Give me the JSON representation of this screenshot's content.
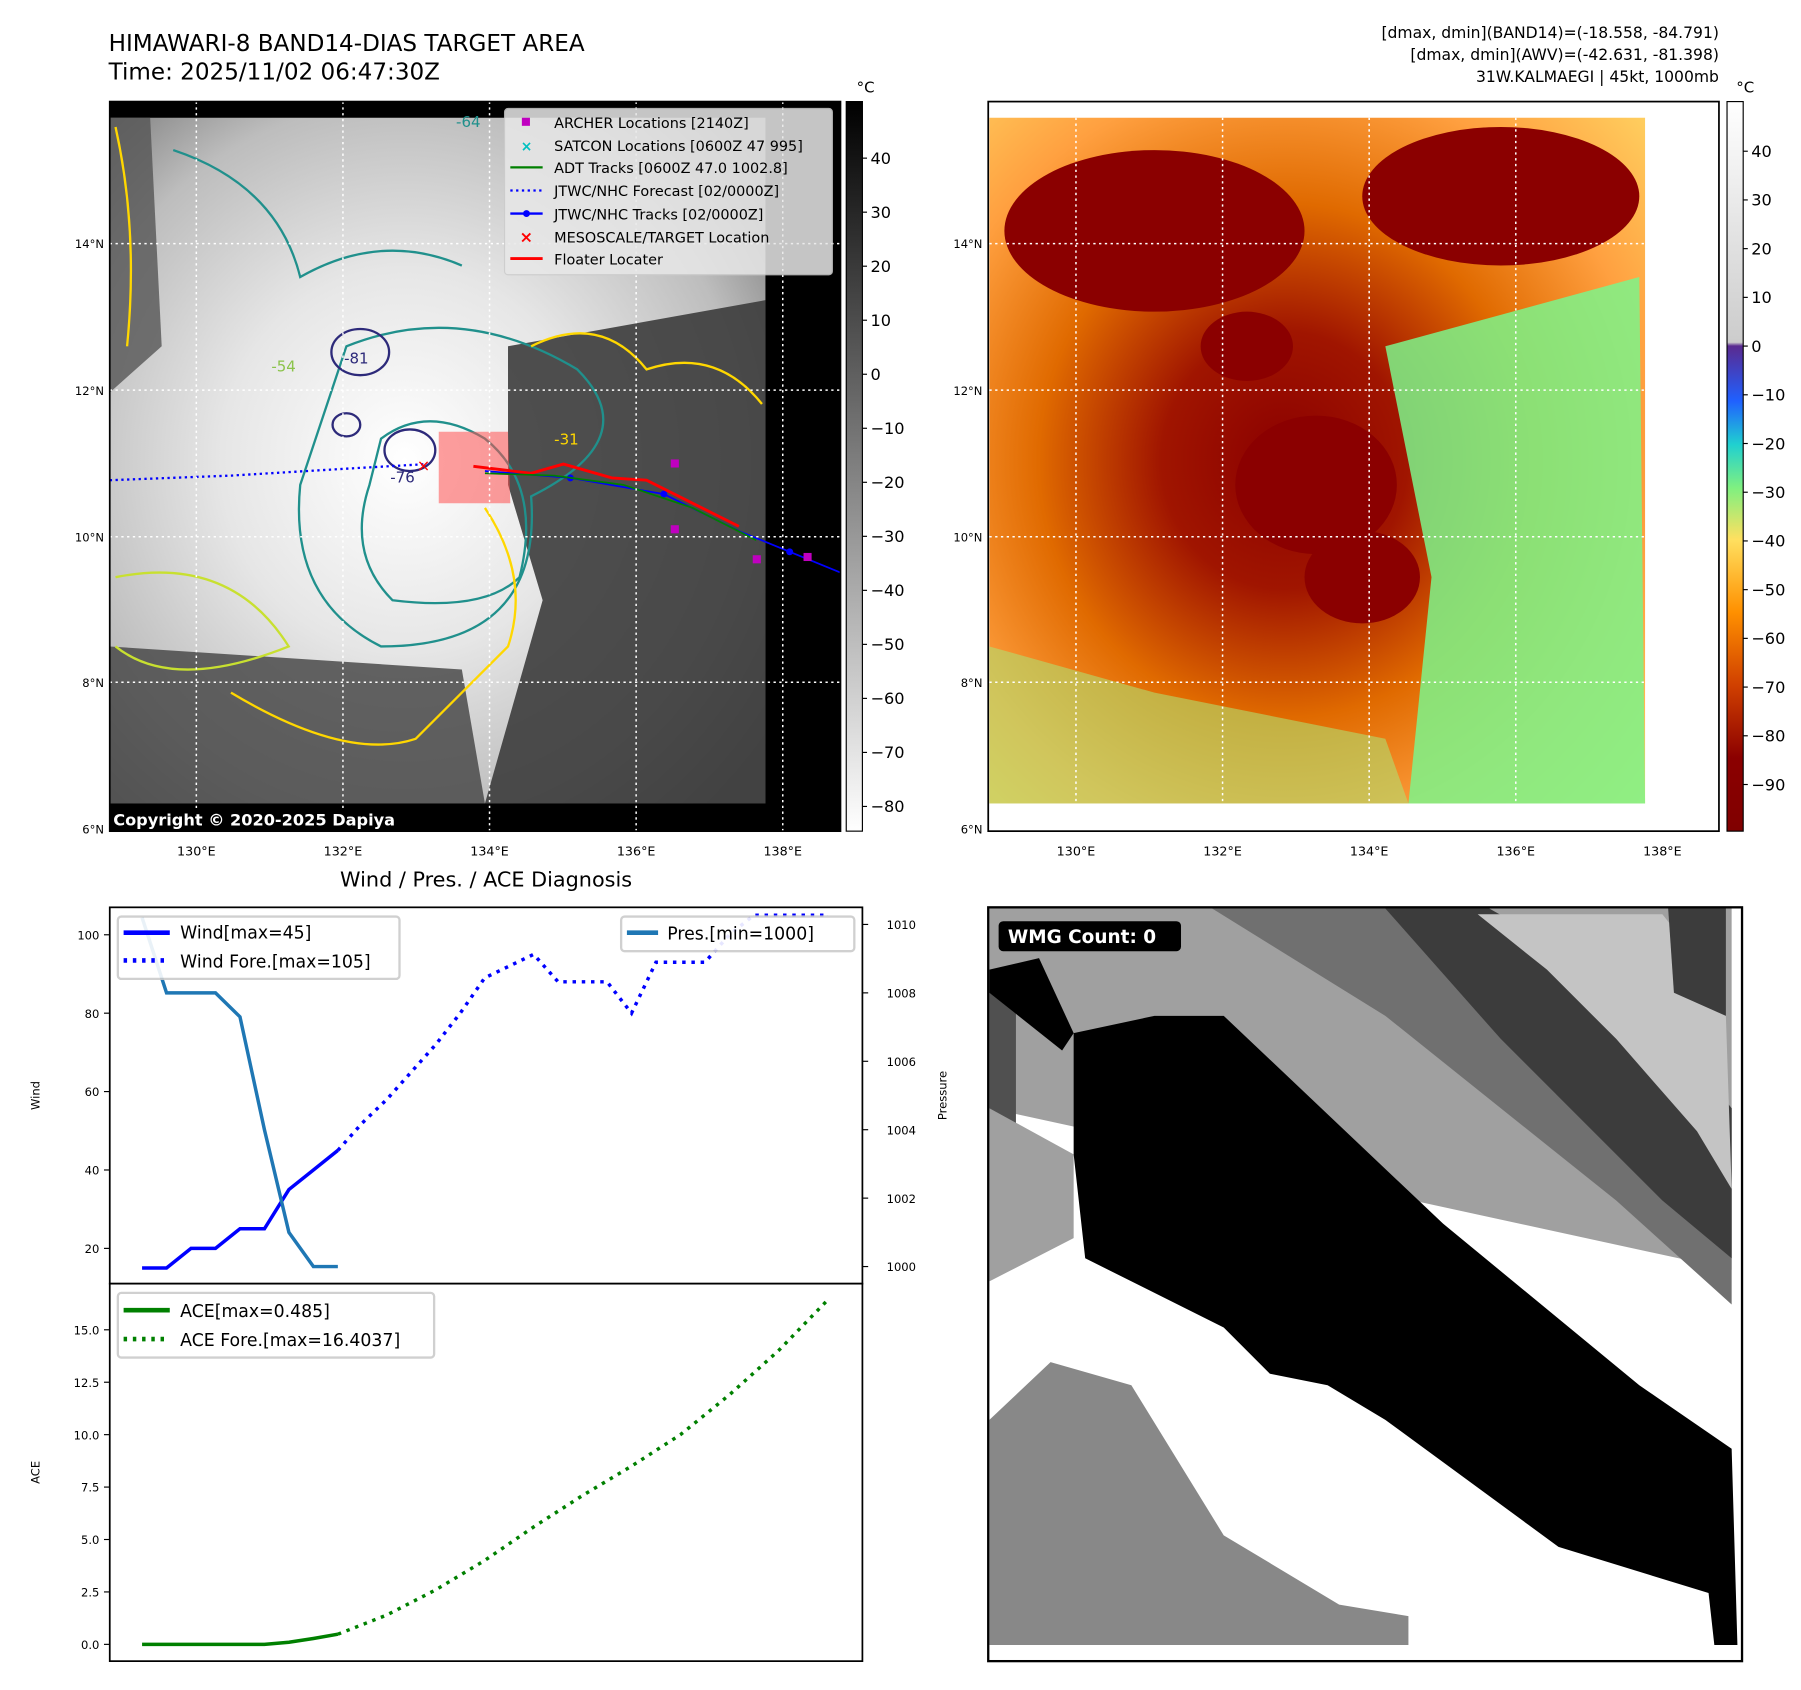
{
  "header": {
    "title": "HIMAWARI-8 BAND14-DIAS TARGET AREA",
    "time": "Time: 2025/11/02 06:47:30Z",
    "stats_band14": "[dmax, dmin](BAND14)=(-18.558, -84.791)",
    "stats_awv": "[dmax, dmin](AWV)=(-42.631, -81.398)",
    "storm": "31W.KALMAEGI | 45kt, 1000mb"
  },
  "map": {
    "lat_labels": [
      "14°N",
      "12°N",
      "10°N",
      "8°N",
      "6°N"
    ],
    "lon_labels": [
      "130°E",
      "132°E",
      "134°E",
      "136°E",
      "138°E"
    ],
    "copyright": "Copyright © 2020-2025 Dapiya",
    "legend": [
      {
        "label": "ARCHER Locations [2140Z]",
        "color": "#c000c0"
      },
      {
        "label": "SATCON Locations [0600Z 47 995]",
        "color": "#00c0c0"
      },
      {
        "label": "ADT Tracks [0600Z 47.0 1002.8]",
        "color": "#008000"
      },
      {
        "label": "JTWC/NHC Forecast [02/0000Z]",
        "color": "#0000ff"
      },
      {
        "label": "JTWC/NHC Tracks [02/0000Z]",
        "color": "#0000ff"
      },
      {
        "label": "MESOSCALE/TARGET Location",
        "color": "#ff0000"
      },
      {
        "label": "Floater Locater",
        "color": "#ff0000"
      }
    ],
    "contour_labels": [
      "-64",
      "-31",
      "-76",
      "-81",
      "-54"
    ],
    "cbar_unit": "°C",
    "cbar_left_ticks": [
      "40",
      "30",
      "20",
      "10",
      "0",
      "−10",
      "−20",
      "−30",
      "−40",
      "−50",
      "−60",
      "−70",
      "−80"
    ],
    "cbar_right_ticks": [
      "40",
      "30",
      "20",
      "10",
      "0",
      "−10",
      "−20",
      "−30",
      "−40",
      "−50",
      "−60",
      "−70",
      "−80",
      "−90"
    ]
  },
  "wmg": {
    "badge": "WMG Count: 0"
  },
  "chart_data": [
    {
      "type": "line",
      "title": "Wind / Pres. / ACE Diagnosis",
      "ylabel": "Wind",
      "ylabel_right": "Pressure",
      "ylim": [
        11,
        107
      ],
      "ylim_right": [
        999.5,
        1010.5
      ],
      "yticks": [
        "20",
        "40",
        "60",
        "80",
        "100"
      ],
      "yticks_right": [
        "1000",
        "1002",
        "1004",
        "1006",
        "1008",
        "1010"
      ],
      "series": [
        {
          "name": "Wind[max=45]",
          "color": "#0000ff",
          "style": "solid",
          "x": [
            0,
            1,
            2,
            3,
            4,
            5,
            6,
            7,
            8
          ],
          "values": [
            15,
            15,
            20,
            20,
            25,
            25,
            35,
            40,
            45
          ]
        },
        {
          "name": "Wind Fore.[max=105]",
          "color": "#0000ff",
          "style": "dotted",
          "x": [
            8,
            9,
            10,
            11,
            12,
            13,
            14,
            15,
            16,
            17,
            18,
            19,
            20,
            21,
            22,
            23,
            24,
            25,
            26,
            27,
            28
          ],
          "values": [
            45,
            52,
            58,
            65,
            72,
            80,
            89,
            92,
            95,
            88,
            88,
            88,
            80,
            93,
            93,
            93,
            100,
            105,
            105,
            105,
            105
          ]
        },
        {
          "name": "Pres.[min=1000]",
          "color": "#1f77b4",
          "style": "solid",
          "axis": "right",
          "x": [
            0,
            1,
            2,
            3,
            4,
            5,
            6,
            7,
            8
          ],
          "values": [
            1010.2,
            1008,
            1008,
            1008,
            1007.3,
            1004,
            1001,
            1000,
            1000
          ]
        }
      ]
    },
    {
      "type": "line",
      "ylabel": "ACE",
      "ylim": [
        -0.8,
        17.2
      ],
      "yticks": [
        "0.0",
        "2.5",
        "5.0",
        "7.5",
        "10.0",
        "12.5",
        "15.0"
      ],
      "series": [
        {
          "name": "ACE[max=0.485]",
          "color": "#008000",
          "style": "solid",
          "x": [
            0,
            1,
            2,
            3,
            4,
            5,
            6,
            7,
            8
          ],
          "values": [
            0,
            0,
            0,
            0,
            0,
            0,
            0.1,
            0.28,
            0.485
          ]
        },
        {
          "name": "ACE Fore.[max=16.4037]",
          "color": "#008000",
          "style": "dotted",
          "x": [
            8,
            10,
            12,
            14,
            16,
            18,
            20,
            22,
            24,
            26,
            28
          ],
          "values": [
            0.485,
            1.4,
            2.6,
            4.0,
            5.6,
            7.1,
            8.5,
            10.0,
            11.9,
            14.0,
            16.4037
          ]
        }
      ]
    }
  ]
}
